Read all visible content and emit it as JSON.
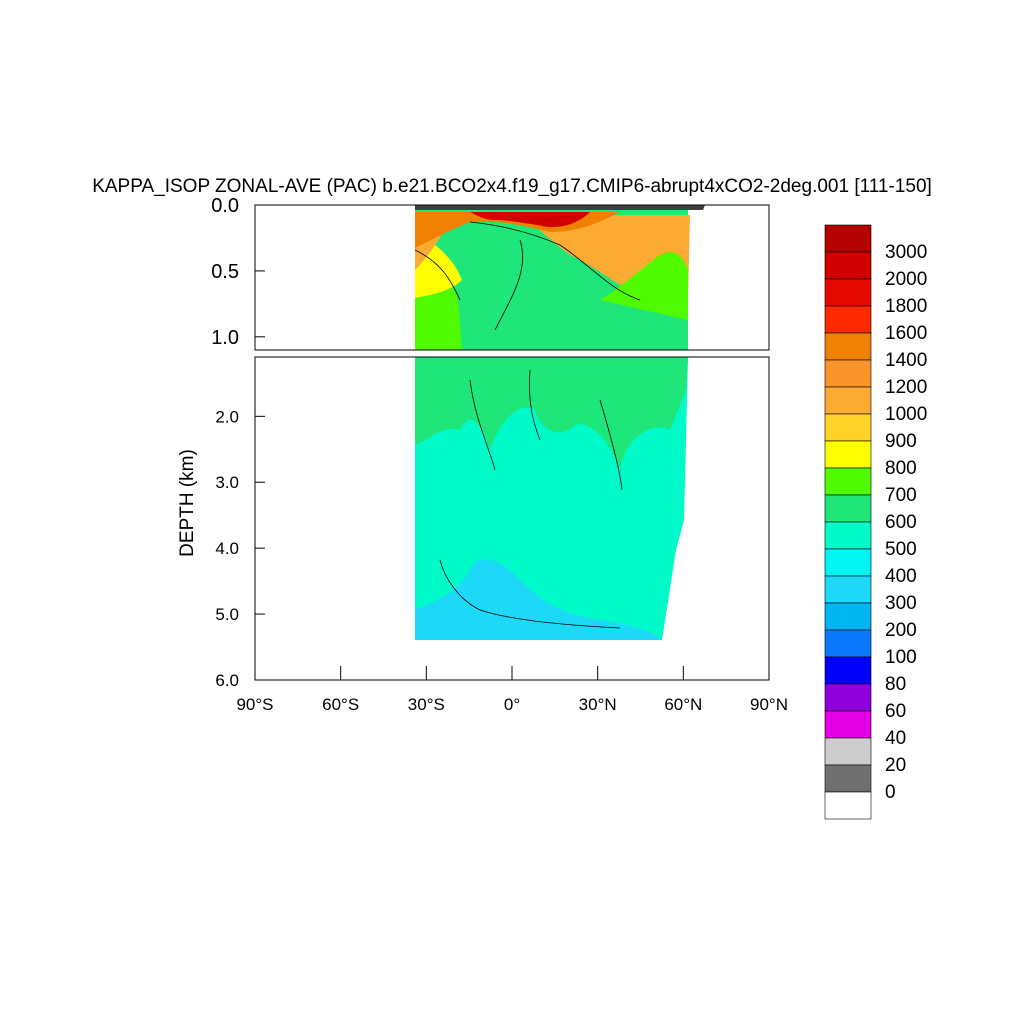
{
  "chart_data": {
    "type": "heatmap",
    "title": "KAPPA_ISOP ZONAL-AVE (PAC) b.e21.BCO2x4.f19_g17.CMIP6-abrupt4xCO2-2deg.001 [111-150]",
    "ylabel": "DEPTH (km)",
    "xlabel": "",
    "xlim": [
      -90,
      90
    ],
    "ylim_upper": [
      0.0,
      1.1
    ],
    "ylim_lower": [
      1.1,
      6.0
    ],
    "x_ticks": [
      {
        "value": -90,
        "label": "90°S"
      },
      {
        "value": -60,
        "label": "60°S"
      },
      {
        "value": -30,
        "label": "30°S"
      },
      {
        "value": 0,
        "label": "0°"
      },
      {
        "value": 30,
        "label": "30°N"
      },
      {
        "value": 60,
        "label": "60°N"
      },
      {
        "value": 90,
        "label": "90°N"
      }
    ],
    "y_ticks_upper": [
      {
        "value": 0.0,
        "label": "0.0"
      },
      {
        "value": 0.5,
        "label": "0.5"
      },
      {
        "value": 1.0,
        "label": "1.0"
      }
    ],
    "y_ticks_lower": [
      {
        "value": 2.0,
        "label": "2.0"
      },
      {
        "value": 3.0,
        "label": "3.0"
      },
      {
        "value": 4.0,
        "label": "4.0"
      },
      {
        "value": 5.0,
        "label": "5.0"
      },
      {
        "value": 6.0,
        "label": "6.0"
      }
    ],
    "colorbar": {
      "labels": [
        "3000",
        "2000",
        "1800",
        "1600",
        "1400",
        "1200",
        "1000",
        "900",
        "800",
        "700",
        "600",
        "500",
        "400",
        "300",
        "200",
        "100",
        "80",
        "60",
        "40",
        "20",
        "0"
      ],
      "colors_top_to_bottom": [
        "#b40000",
        "#d20000",
        "#e60a00",
        "#ff2a00",
        "#f08000",
        "#fa9428",
        "#fbaa32",
        "#ffd228",
        "#ffff00",
        "#50fa00",
        "#1ee678",
        "#00faca",
        "#00f5f5",
        "#1ed8f8",
        "#00b4f0",
        "#0a78ff",
        "#0000ff",
        "#9000dd",
        "#e400e4",
        "#cccccc",
        "#707070",
        "#ffffff"
      ]
    },
    "field_description_levels": {
      "surface_max": 3000,
      "upper_ocean_band": 1400,
      "thermocline": 700,
      "intermediate": 600,
      "deep": 500,
      "abyssal": 400
    },
    "data_extent": {
      "lat_min": -34,
      "lat_max": 62,
      "depth_max": 5.4
    }
  }
}
